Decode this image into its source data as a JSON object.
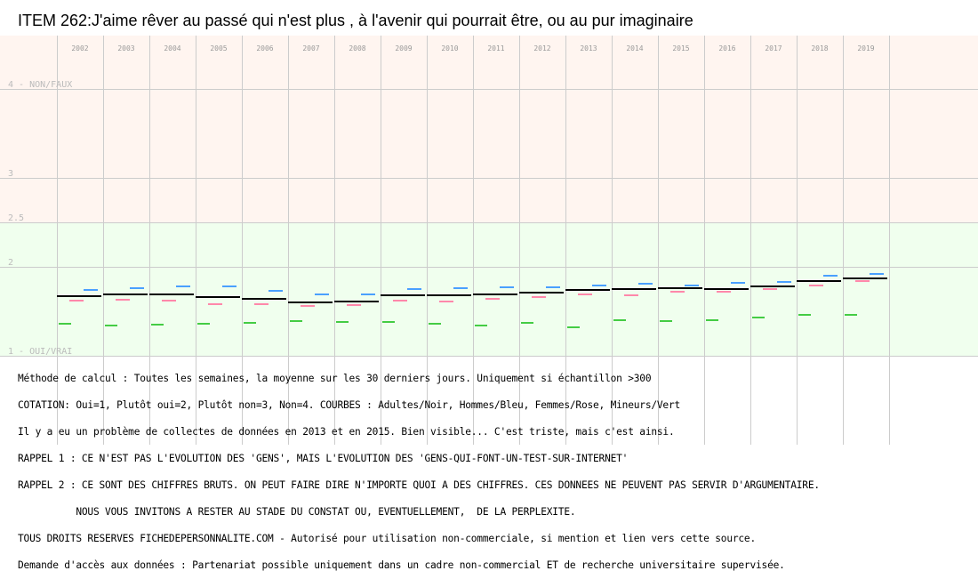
{
  "chart_data": {
    "type": "line",
    "title": "ITEM 262:J'aime rêver au passé qui n'est plus , à l'avenir qui pourrait être, ou au pur imaginaire",
    "categories": [
      "2002",
      "2003",
      "2004",
      "2005",
      "2006",
      "2007",
      "2008",
      "2009",
      "2010",
      "2011",
      "2012",
      "2013",
      "2014",
      "2015",
      "2016",
      "2017",
      "2018",
      "2019"
    ],
    "ylim": [
      1,
      4
    ],
    "y_ticks": [
      {
        "value": 4,
        "label": "4 - NON/FAUX"
      },
      {
        "value": 3,
        "label": "3"
      },
      {
        "value": 2.5,
        "label": "2.5"
      },
      {
        "value": 2,
        "label": "2"
      },
      {
        "value": 1,
        "label": "1 - OUI/VRAI"
      }
    ],
    "zones": {
      "upper_color": "#fff5f0",
      "lower_color": "#f0ffee",
      "split": 2.5
    },
    "grid": true,
    "series": [
      {
        "name": "Adultes",
        "color": "#000000",
        "values": [
          1.67,
          1.69,
          1.69,
          1.66,
          1.64,
          1.6,
          1.61,
          1.68,
          1.68,
          1.69,
          1.71,
          1.74,
          1.75,
          1.76,
          1.75,
          1.78,
          1.84,
          1.87
        ]
      },
      {
        "name": "Hommes",
        "color": "#4aa0ff",
        "values": [
          1.74,
          1.76,
          1.78,
          1.78,
          1.73,
          1.69,
          1.69,
          1.75,
          1.76,
          1.77,
          1.77,
          1.79,
          1.81,
          1.79,
          1.82,
          1.83,
          1.9,
          1.92
        ]
      },
      {
        "name": "Femmes",
        "color": "#ff88aa",
        "values": [
          1.62,
          1.63,
          1.62,
          1.58,
          1.58,
          1.56,
          1.57,
          1.62,
          1.61,
          1.64,
          1.66,
          1.69,
          1.68,
          1.72,
          1.72,
          1.75,
          1.79,
          1.84
        ]
      },
      {
        "name": "Mineurs",
        "color": "#44cc44",
        "values": [
          1.36,
          1.34,
          1.35,
          1.36,
          1.37,
          1.39,
          1.38,
          1.38,
          1.36,
          1.34,
          1.37,
          1.32,
          1.4,
          1.39,
          1.4,
          1.43,
          1.46,
          1.46
        ]
      }
    ]
  },
  "notes": [
    "Méthode de calcul : Toutes les semaines, la moyenne sur les 30 derniers jours. Uniquement si échantillon >300",
    "COTATION: Oui=1, Plutôt oui=2, Plutôt non=3, Non=4. COURBES : Adultes/Noir, Hommes/Bleu, Femmes/Rose, Mineurs/Vert",
    "Il y a eu un problème de collectes de données en 2013 et en 2015. Bien visible... C'est triste, mais c'est ainsi.",
    "RAPPEL 1 : CE N'EST PAS L'EVOLUTION DES 'GENS', MAIS L'EVOLUTION DES 'GENS-QUI-FONT-UN-TEST-SUR-INTERNET'",
    "RAPPEL 2 : CE SONT DES CHIFFRES BRUTS. ON PEUT FAIRE DIRE N'IMPORTE QUOI A DES CHIFFRES. CES DONNEES NE PEUVENT PAS SERVIR D'ARGUMENTAIRE.",
    "          NOUS VOUS INVITONS A RESTER AU STADE DU CONSTAT OU, EVENTUELLEMENT,  DE LA PERPLEXITE.",
    "TOUS DROITS RESERVES FICHEDEPERSONNALITE.COM - Autorisé pour utilisation non-commerciale, si mention et lien vers cette source.",
    "Demande d'accès aux données : Partenariat possible uniquement dans un cadre non-commercial ET de recherche universitaire supervisée."
  ]
}
